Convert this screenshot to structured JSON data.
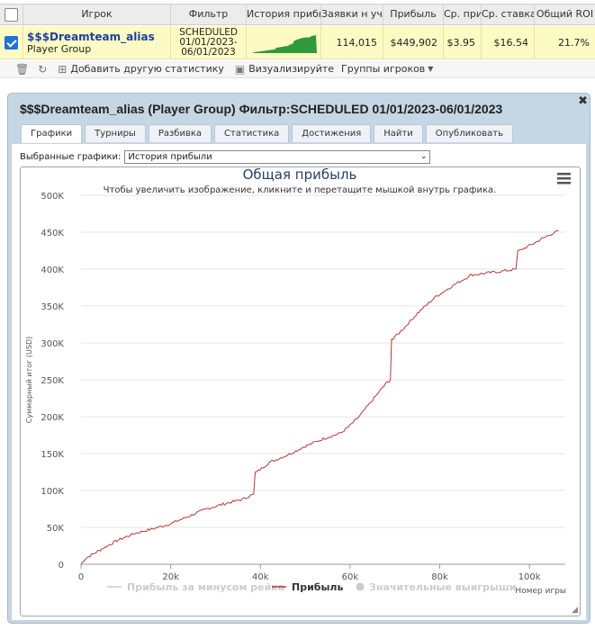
{
  "stats_table": {
    "headers": [
      "Игрок",
      "Фильтр",
      "История прибыли",
      "Заявки н уч",
      "Прибыль",
      "Ср. приб.",
      "Ср. ставка",
      "Общий ROI"
    ],
    "row": {
      "player_name": "$$$Dreamteam_alias",
      "player_type": "Player Group",
      "filter_line1": "SCHEDULED",
      "filter_line2": "01/01/2023-",
      "filter_line3": "06/01/2023",
      "entries": "114,015",
      "profit": "$449,902",
      "avg_profit": "$3.95",
      "avg_stake": "$16.54",
      "roi": "21.7%"
    }
  },
  "toolbar": {
    "add_stats": "Добавить другую статистику",
    "visualize": "Визуализируйте",
    "player_groups": "Группы игроков"
  },
  "dialog": {
    "title": "$$$Dreamteam_alias (Player Group) Фильтр:SCHEDULED 01/01/2023-06/01/2023",
    "tabs": [
      "Графики",
      "Турниры",
      "Разбивка",
      "Статистика",
      "Достижения",
      "Найти",
      "Опубликовать"
    ],
    "selected_label": "Выбранные графики:",
    "selected_value": "История прибыли"
  },
  "chart_data": {
    "type": "line",
    "title": "Общая прибыль",
    "subtitle": "Чтобы увеличить изображение, кликните и перетащите мышкой внутрь графика.",
    "xlabel": "Номер игры",
    "ylabel": "Суммарный итог (USD)",
    "xlim": [
      0,
      108000
    ],
    "ylim": [
      0,
      500000
    ],
    "x_ticks": [
      "0",
      "20k",
      "40k",
      "60k",
      "80k",
      "100k"
    ],
    "x_tick_values": [
      0,
      20000,
      40000,
      60000,
      80000,
      100000
    ],
    "y_ticks": [
      "0",
      "50K",
      "100K",
      "150K",
      "200K",
      "250K",
      "300K",
      "350K",
      "400K",
      "450K",
      "500K"
    ],
    "y_tick_values": [
      0,
      50000,
      100000,
      150000,
      200000,
      250000,
      300000,
      350000,
      400000,
      450000,
      500000
    ],
    "series": [
      {
        "name": "Прибыль",
        "color": "#b23a3a",
        "x": [
          0,
          1000,
          3000,
          5000,
          8000,
          12000,
          16000,
          20000,
          24000,
          28000,
          32000,
          36000,
          38500,
          39200,
          42000,
          46000,
          50000,
          54000,
          58000,
          60000,
          62000,
          64000,
          66000,
          68000,
          69000,
          69500,
          72000,
          75000,
          79000,
          83000,
          87000,
          91000,
          95000,
          97000,
          97800,
          101000,
          104000,
          106500
        ],
        "y": [
          0,
          8000,
          15000,
          22000,
          32000,
          42000,
          48000,
          55000,
          65000,
          75000,
          82000,
          88000,
          95000,
          125000,
          138000,
          148000,
          160000,
          170000,
          178000,
          188000,
          200000,
          215000,
          230000,
          245000,
          250000,
          305000,
          320000,
          340000,
          362000,
          378000,
          392000,
          395000,
          398000,
          400000,
          425000,
          435000,
          445000,
          452000
        ]
      }
    ],
    "legend": [
      {
        "label": "Прибыль за минусом рейка",
        "color": "#cccccc",
        "enabled": false
      },
      {
        "label": "Прибыль",
        "color": "#b23a3a",
        "enabled": true
      },
      {
        "label": "Значительные выигрыши",
        "color": "#cccccc",
        "enabled": false
      }
    ]
  }
}
